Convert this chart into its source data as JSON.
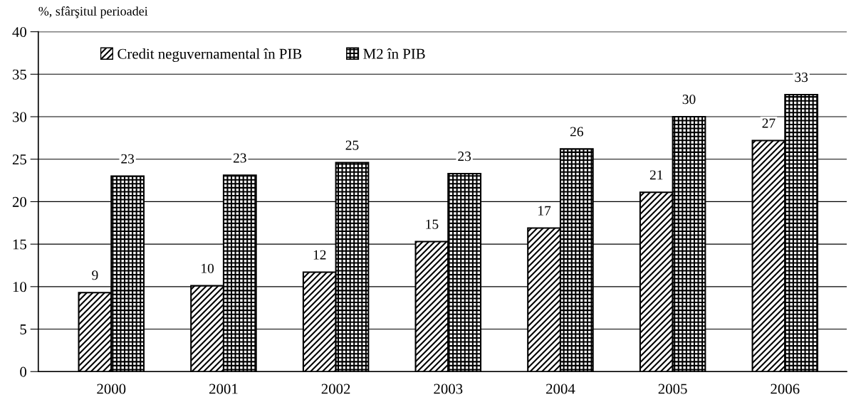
{
  "chart_data": {
    "type": "bar",
    "ylabel": "%, sfârşitul perioadei",
    "categories": [
      "2000",
      "2001",
      "2002",
      "2003",
      "2004",
      "2005",
      "2006"
    ],
    "series": [
      {
        "name": "Credit neguvernamental în PIB",
        "color": "#000000",
        "values": [
          9.3,
          10.1,
          11.7,
          15.3,
          16.9,
          21.1,
          27.2
        ],
        "value_labels": [
          "9",
          "10",
          "12",
          "15",
          "17",
          "21",
          "27"
        ]
      },
      {
        "name": "M2 în PIB",
        "color": "#000000",
        "values": [
          23.0,
          23.1,
          24.6,
          23.3,
          26.2,
          30.0,
          32.6
        ],
        "value_labels": [
          "23",
          "23",
          "25",
          "23",
          "26",
          "30",
          "33"
        ]
      }
    ],
    "ylim": [
      0,
      40
    ],
    "yticks": [
      0,
      5,
      10,
      15,
      20,
      25,
      30,
      35,
      40
    ],
    "grid": "y",
    "legend": "top left"
  }
}
